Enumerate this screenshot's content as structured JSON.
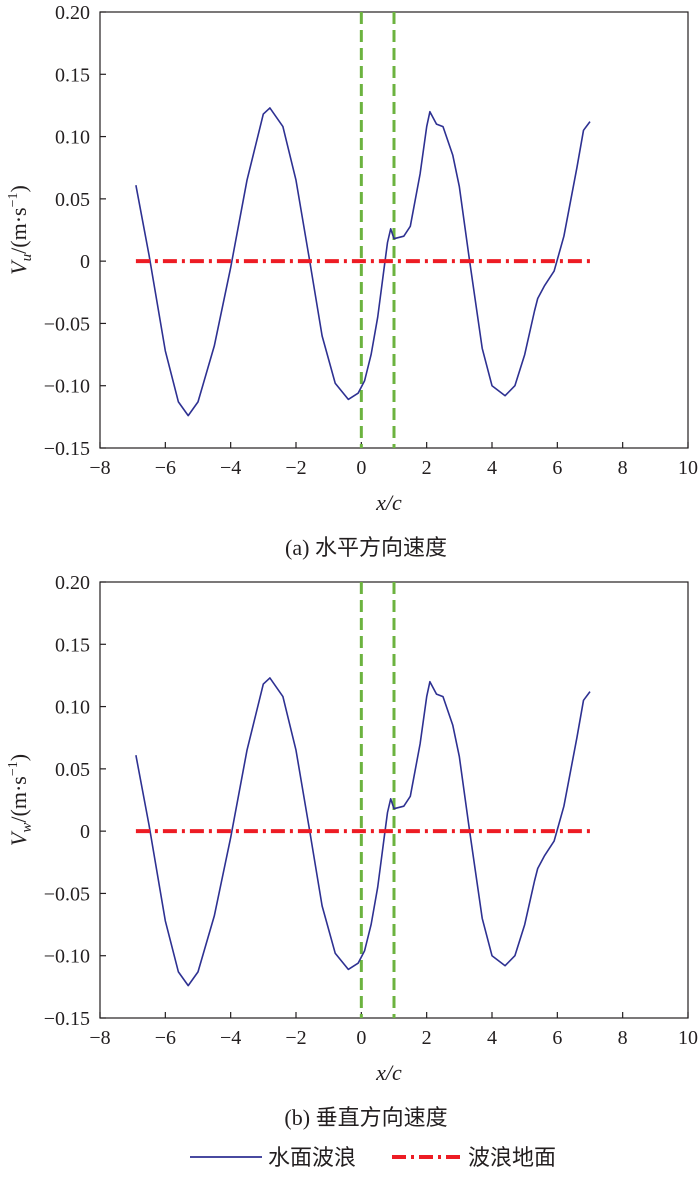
{
  "chart_data": [
    {
      "type": "line",
      "caption": "(a) 水平方向速度",
      "xlabel": "x/c",
      "ylabel": {
        "main": "V",
        "sub": "u",
        "unit": "/(m·s",
        "sup": "−1",
        "close": ")"
      },
      "xlim": [
        -8,
        10
      ],
      "ylim": [
        -0.15,
        0.2
      ],
      "xticks": [
        -8,
        -6,
        -4,
        -2,
        0,
        2,
        4,
        6,
        8,
        10
      ],
      "xtick_labels": [
        "−8",
        "−6",
        "−4",
        "−2",
        "0",
        "2",
        "4",
        "6",
        "8",
        "10"
      ],
      "yticks": [
        -0.15,
        -0.1,
        -0.05,
        0,
        0.05,
        0.1,
        0.15,
        0.2
      ],
      "ytick_labels": [
        "−0.15",
        "−0.10",
        "−0.05",
        "0",
        "0.05",
        "0.10",
        "0.15",
        "0.20"
      ],
      "grid": false,
      "series": [
        {
          "name": "水面波浪",
          "color": "#2e3192",
          "x": [
            -6.9,
            -6.5,
            -6.0,
            -5.6,
            -5.3,
            -5.0,
            -4.5,
            -4.0,
            -3.5,
            -3.0,
            -2.8,
            -2.4,
            -2.0,
            -1.6,
            -1.2,
            -0.8,
            -0.4,
            -0.1,
            0.1,
            0.3,
            0.5,
            0.7,
            0.8,
            0.9,
            1.0,
            1.3,
            1.5,
            1.8,
            2.0,
            2.1,
            2.3,
            2.5,
            2.8,
            3.0,
            3.3,
            3.7,
            4.0,
            4.4,
            4.7,
            5.0,
            5.3,
            5.4,
            5.6,
            5.9,
            6.2,
            6.6,
            6.8,
            7.0
          ],
          "y": [
            0.061,
            0.005,
            -0.072,
            -0.113,
            -0.124,
            -0.113,
            -0.068,
            -0.005,
            0.065,
            0.118,
            0.123,
            0.108,
            0.065,
            0.003,
            -0.06,
            -0.098,
            -0.111,
            -0.106,
            -0.096,
            -0.075,
            -0.045,
            -0.005,
            0.015,
            0.026,
            0.018,
            0.02,
            0.028,
            0.07,
            0.108,
            0.12,
            0.11,
            0.108,
            0.085,
            0.06,
            0.003,
            -0.07,
            -0.1,
            -0.108,
            -0.1,
            -0.075,
            -0.04,
            -0.03,
            -0.02,
            -0.008,
            0.02,
            0.075,
            0.105,
            0.112
          ]
        },
        {
          "name": "波浪地面",
          "color": "#ed1c24",
          "x": [
            -6.9,
            7.0
          ],
          "y": [
            0,
            0
          ]
        }
      ],
      "vlines": {
        "color": "#6cb33f",
        "x": [
          0,
          1
        ]
      }
    },
    {
      "type": "line",
      "caption": "(b) 垂直方向速度",
      "xlabel": "x/c",
      "ylabel": {
        "main": "V",
        "sub": "w",
        "unit": "/(m·s",
        "sup": "−1",
        "close": ")"
      },
      "xlim": [
        -8,
        10
      ],
      "ylim": [
        -0.15,
        0.2
      ],
      "xticks": [
        -8,
        -6,
        -4,
        -2,
        0,
        2,
        4,
        6,
        8,
        10
      ],
      "xtick_labels": [
        "−8",
        "−6",
        "−4",
        "−2",
        "0",
        "2",
        "4",
        "6",
        "8",
        "10"
      ],
      "yticks": [
        -0.15,
        -0.1,
        -0.05,
        0,
        0.05,
        0.1,
        0.15,
        0.2
      ],
      "ytick_labels": [
        "−0.15",
        "−0.10",
        "−0.05",
        "0",
        "0.05",
        "0.10",
        "0.15",
        "0.20"
      ],
      "grid": false,
      "series": [
        {
          "name": "水面波浪",
          "color": "#2e3192",
          "x": [
            -6.9,
            -6.5,
            -6.0,
            -5.6,
            -5.3,
            -5.0,
            -4.5,
            -4.0,
            -3.5,
            -3.0,
            -2.8,
            -2.4,
            -2.0,
            -1.6,
            -1.2,
            -0.8,
            -0.4,
            -0.1,
            0.1,
            0.3,
            0.5,
            0.7,
            0.8,
            0.9,
            1.0,
            1.3,
            1.5,
            1.8,
            2.0,
            2.1,
            2.3,
            2.5,
            2.8,
            3.0,
            3.3,
            3.7,
            4.0,
            4.4,
            4.7,
            5.0,
            5.3,
            5.4,
            5.6,
            5.9,
            6.2,
            6.6,
            6.8,
            7.0
          ],
          "y": [
            0.061,
            0.005,
            -0.072,
            -0.113,
            -0.124,
            -0.113,
            -0.068,
            -0.005,
            0.065,
            0.118,
            0.123,
            0.108,
            0.065,
            0.003,
            -0.06,
            -0.098,
            -0.111,
            -0.106,
            -0.096,
            -0.075,
            -0.045,
            -0.005,
            0.015,
            0.026,
            0.018,
            0.02,
            0.028,
            0.07,
            0.108,
            0.12,
            0.11,
            0.108,
            0.085,
            0.06,
            0.003,
            -0.07,
            -0.1,
            -0.108,
            -0.1,
            -0.075,
            -0.04,
            -0.03,
            -0.02,
            -0.008,
            0.02,
            0.075,
            0.105,
            0.112
          ]
        },
        {
          "name": "波浪地面",
          "color": "#ed1c24",
          "x": [
            -6.9,
            7.0
          ],
          "y": [
            0,
            0
          ]
        }
      ],
      "vlines": {
        "color": "#6cb33f",
        "x": [
          0,
          1
        ]
      }
    }
  ],
  "legend": {
    "placement": "bottom-center",
    "entries": [
      {
        "label": "水面波浪",
        "color": "#2e3192",
        "style": "solid"
      },
      {
        "label": "波浪地面",
        "color": "#ed1c24",
        "style": "dash-dot"
      }
    ]
  }
}
